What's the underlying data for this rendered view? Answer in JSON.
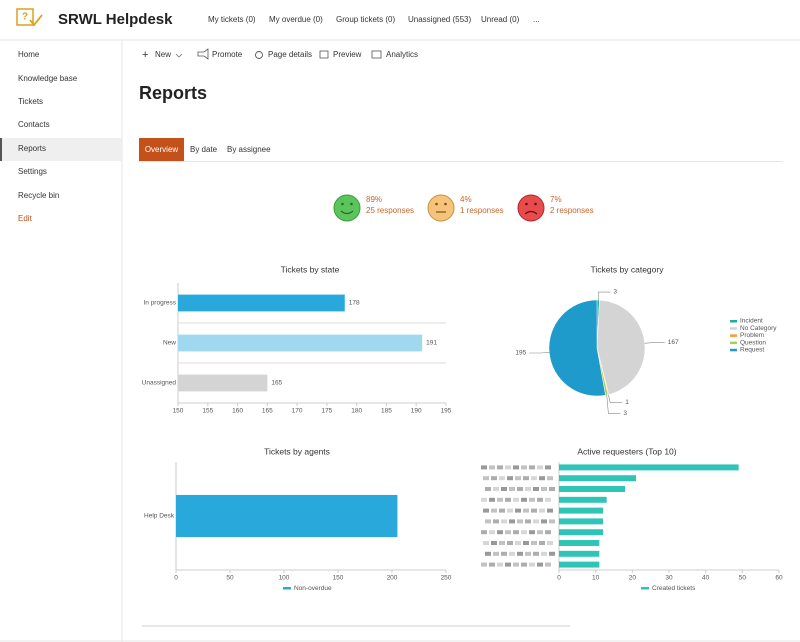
{
  "header": {
    "title": "SRWL Helpdesk",
    "nav": [
      "My tickets (0)",
      "My overdue (0)",
      "Group tickets (0)",
      "Unassigned (553)",
      "Unread (0)",
      "..."
    ]
  },
  "sidebar": [
    "Home",
    "Knowledge base",
    "Tickets",
    "Contacts",
    "Reports",
    "Settings",
    "Recycle bin",
    "Edit"
  ],
  "toolbar": [
    "New",
    "Promote",
    "Page details",
    "Preview",
    "Analytics"
  ],
  "page_title": "Reports",
  "tabs": [
    "Overview",
    "By date",
    "By assignee"
  ],
  "satisfaction": [
    {
      "percent": "89%",
      "responses": "25 responses"
    },
    {
      "percent": "4%",
      "responses": "1 responses"
    },
    {
      "percent": "7%",
      "responses": "2 responses"
    }
  ],
  "chart_data": [
    {
      "type": "hbar",
      "title": "Tickets by state",
      "categories": [
        "In progress",
        "New",
        "Unassigned"
      ],
      "values": [
        178,
        191,
        165
      ],
      "colors": [
        "#29a8dc",
        "#a0d9ef",
        "#d4d4d4"
      ],
      "xlim": [
        150,
        195
      ],
      "xticks": [
        150,
        155,
        160,
        165,
        170,
        175,
        180,
        185,
        190,
        195
      ],
      "grid": true,
      "data_labels": true
    },
    {
      "type": "pie",
      "title": "Tickets by category",
      "categories": [
        "Incident",
        "No Category",
        "Problem",
        "Question",
        "Request"
      ],
      "values": [
        3,
        167,
        1,
        3,
        195
      ],
      "colors": [
        "#1fae9a",
        "#d4d4d4",
        "#f0a030",
        "#a8d050",
        "#1e9bcb"
      ],
      "legend": "right"
    },
    {
      "type": "hbar",
      "title": "Tickets by agents",
      "categories": [
        "Help Desk"
      ],
      "series": [
        {
          "name": "Non-overdue",
          "color": "#29a8dc",
          "values": [
            205
          ]
        }
      ],
      "xlim": [
        0,
        250
      ],
      "xticks": [
        0,
        50,
        100,
        150,
        200,
        250
      ],
      "legend": "bottom"
    },
    {
      "type": "hbar",
      "title": "Active requesters (Top 10)",
      "categories": [
        null,
        null,
        null,
        null,
        null,
        null,
        null,
        null,
        null,
        null
      ],
      "series": [
        {
          "name": "Created tickets",
          "color": "#2ec4b6",
          "values": [
            49,
            21,
            18,
            13,
            12,
            12,
            12,
            11,
            11,
            11
          ]
        }
      ],
      "xlim": [
        0,
        60
      ],
      "xticks": [
        0,
        10,
        20,
        30,
        40,
        50,
        60
      ],
      "legend": "bottom"
    }
  ]
}
